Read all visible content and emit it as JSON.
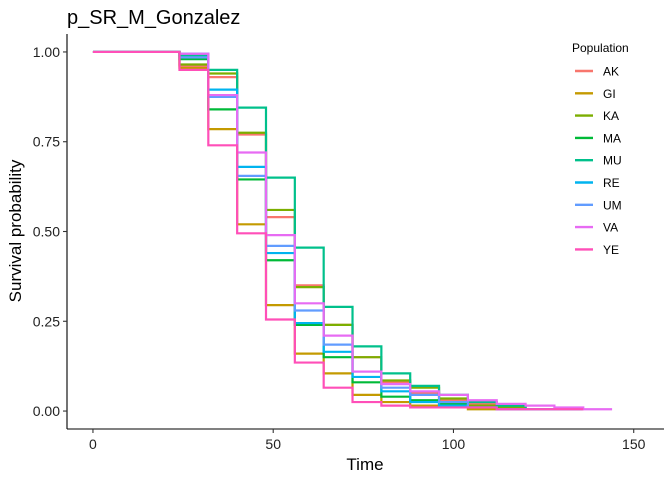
{
  "chart_data": {
    "type": "line",
    "step": true,
    "title": "p_SR_M_Gonzalez",
    "xlabel": "Time",
    "ylabel": "Survival probability",
    "xlim": [
      -7.2,
      158.4
    ],
    "ylim": [
      -0.05,
      1.05
    ],
    "xticks": [
      0,
      50,
      100,
      150
    ],
    "xtick_labels": [
      "0",
      "50",
      "100",
      "150"
    ],
    "yticks": [
      0,
      0.25,
      0.5,
      0.75,
      1
    ],
    "ytick_labels": [
      "0.00",
      "0.25",
      "0.50",
      "0.75",
      "1.00"
    ],
    "grid": false,
    "legend": {
      "title": "Population",
      "position": "top-right"
    },
    "series": [
      {
        "name": "AK",
        "color": "#F8766D",
        "x": [
          0,
          24,
          32,
          40,
          48,
          56,
          64,
          72,
          80,
          88,
          96,
          104,
          112,
          120,
          136
        ],
        "y": [
          1.0,
          0.96,
          0.93,
          0.77,
          0.54,
          0.35,
          0.24,
          0.15,
          0.08,
          0.05,
          0.03,
          0.02,
          0.015,
          0.005,
          0.005
        ]
      },
      {
        "name": "GI",
        "color": "#C49A00",
        "x": [
          0,
          24,
          32,
          40,
          48,
          56,
          64,
          72,
          80,
          88,
          96,
          104,
          112,
          136
        ],
        "y": [
          1.0,
          0.955,
          0.785,
          0.52,
          0.295,
          0.16,
          0.105,
          0.045,
          0.025,
          0.015,
          0.01,
          0.005,
          0.005,
          0.005
        ]
      },
      {
        "name": "KA",
        "color": "#7CAE00",
        "x": [
          0,
          24,
          32,
          40,
          48,
          56,
          64,
          72,
          80,
          88,
          96,
          104,
          112,
          120,
          128
        ],
        "y": [
          1.0,
          0.965,
          0.94,
          0.775,
          0.56,
          0.345,
          0.24,
          0.15,
          0.085,
          0.065,
          0.035,
          0.015,
          0.01,
          0.005,
          0.005
        ]
      },
      {
        "name": "MA",
        "color": "#00BA38",
        "x": [
          0,
          24,
          32,
          40,
          48,
          56,
          64,
          72,
          80,
          88,
          96,
          104,
          112,
          128
        ],
        "y": [
          1.0,
          0.98,
          0.84,
          0.645,
          0.42,
          0.24,
          0.15,
          0.08,
          0.04,
          0.03,
          0.02,
          0.01,
          0.005,
          0.005
        ]
      },
      {
        "name": "MU",
        "color": "#00C08B",
        "x": [
          0,
          24,
          32,
          40,
          48,
          56,
          64,
          72,
          80,
          88,
          96,
          104,
          112,
          120,
          136
        ],
        "y": [
          1.0,
          0.99,
          0.95,
          0.845,
          0.65,
          0.455,
          0.29,
          0.18,
          0.105,
          0.07,
          0.045,
          0.025,
          0.015,
          0.005,
          0.005
        ]
      },
      {
        "name": "RE",
        "color": "#00B4EF",
        "x": [
          0,
          24,
          32,
          40,
          48,
          56,
          64,
          72,
          80,
          88,
          96,
          104,
          112,
          128
        ],
        "y": [
          1.0,
          0.995,
          0.895,
          0.68,
          0.44,
          0.245,
          0.165,
          0.095,
          0.055,
          0.025,
          0.015,
          0.01,
          0.005,
          0.005
        ]
      },
      {
        "name": "UM",
        "color": "#619CFF",
        "x": [
          0,
          24,
          32,
          40,
          48,
          56,
          64,
          72,
          80,
          88,
          96,
          104,
          112,
          128,
          136
        ],
        "y": [
          1.0,
          0.985,
          0.875,
          0.655,
          0.46,
          0.28,
          0.185,
          0.11,
          0.065,
          0.045,
          0.025,
          0.01,
          0.005,
          0.005,
          0.005
        ]
      },
      {
        "name": "VA",
        "color": "#E76BF3",
        "x": [
          0,
          24,
          32,
          40,
          48,
          56,
          64,
          72,
          80,
          88,
          96,
          104,
          112,
          120,
          128,
          136,
          144
        ],
        "y": [
          1.0,
          0.995,
          0.88,
          0.72,
          0.49,
          0.3,
          0.21,
          0.11,
          0.075,
          0.055,
          0.045,
          0.03,
          0.02,
          0.015,
          0.01,
          0.005,
          0.005
        ]
      },
      {
        "name": "YE",
        "color": "#FF4FB8",
        "x": [
          0,
          24,
          32,
          40,
          48,
          56,
          64,
          72,
          80,
          88,
          96,
          112,
          120,
          136
        ],
        "y": [
          1.0,
          0.95,
          0.74,
          0.495,
          0.255,
          0.135,
          0.065,
          0.025,
          0.015,
          0.01,
          0.01,
          0.005,
          0.005,
          0.005
        ]
      }
    ]
  }
}
